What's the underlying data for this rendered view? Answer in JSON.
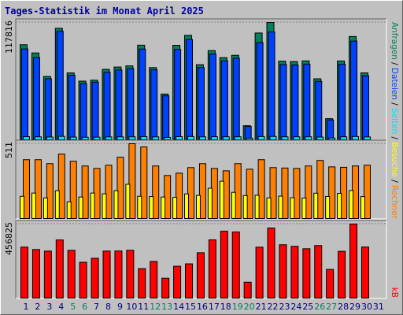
{
  "chart_data": {
    "type": "bar",
    "title": "Tages-Statistik im Monat April 2025",
    "categories": [
      "1",
      "2",
      "3",
      "4",
      "5",
      "6",
      "7",
      "8",
      "9",
      "10",
      "11",
      "12",
      "13",
      "14",
      "15",
      "16",
      "17",
      "18",
      "19",
      "20",
      "21",
      "22",
      "23",
      "24",
      "25",
      "26",
      "27",
      "28",
      "29",
      "30",
      "31"
    ],
    "category_colors": [
      "#000080",
      "#000080",
      "#000080",
      "#000080",
      "#008060",
      "#008060",
      "#000080",
      "#000080",
      "#000080",
      "#000080",
      "#000080",
      "#008060",
      "#008060",
      "#000080",
      "#000080",
      "#000080",
      "#000080",
      "#000080",
      "#008060",
      "#008060",
      "#000080",
      "#000080",
      "#000080",
      "#000080",
      "#000080",
      "#008060",
      "#008060",
      "#000080",
      "#000080",
      "#000080",
      "#000080"
    ],
    "legend_separator": "/",
    "panels": [
      {
        "ylim": [
          0,
          117816
        ],
        "yticks": [
          117816
        ],
        "series": [
          {
            "name": "Anfragen",
            "color": "#00805c",
            "values": [
              95431,
              87184,
              63621,
              111925,
              67155,
              58908,
              59820,
              70690,
              73046,
              74224,
              95012,
              72510,
              45948,
              94870,
              104856,
              75402,
              89540,
              82471,
              84828,
              14138,
              107213,
              117816,
              78937,
              78500,
              79210,
              61264,
              21207,
              79100,
              103678,
              67155,
              null
            ]
          },
          {
            "name": "Dateien",
            "color": "#0040ff",
            "values": [
              91200,
              82600,
              61300,
              108900,
              64800,
              56400,
              57900,
              67800,
              70100,
              71500,
              91100,
              70200,
              44100,
              90800,
              100700,
              72600,
              86100,
              79300,
              81900,
              13400,
              97600,
              108300,
              75600,
              75100,
              76000,
              58700,
              19900,
              75900,
              99100,
              64300,
              null
            ]
          },
          {
            "name": "Seiten",
            "color": "#00e0ff",
            "values": [
              3120,
              2980,
              2750,
              3410,
              2690,
              2540,
              2610,
              2870,
              2930,
              2960,
              3180,
              2900,
              2410,
              3150,
              3290,
              2950,
              3080,
              2990,
              3010,
              1620,
              3240,
              3380,
              2980,
              2970,
              3010,
              2720,
              1810,
              2990,
              3260,
              2850,
              null
            ]
          }
        ]
      },
      {
        "ylim": [
          0,
          511
        ],
        "yticks": [
          511
        ],
        "series": [
          {
            "name": "Besuche",
            "color": "#ffff00",
            "values": [
              152,
              174,
              141,
              190,
              114,
              147,
              174,
              169,
              190,
              234,
              152,
              150,
              147,
              145,
              168,
              158,
              207,
              255,
              179,
              157,
              159,
              141,
              153,
              142,
              140,
              173,
              151,
              172,
              191,
              150,
              null
            ]
          },
          {
            "name": "Rechner",
            "color": "#ff8000",
            "values": [
              402,
              402,
              375,
              440,
              391,
              359,
              342,
              364,
              419,
              511,
              489,
              359,
              294,
              310,
              348,
              375,
              342,
              326,
              375,
              337,
              402,
              348,
              345,
              342,
              359,
              397,
              353,
              350,
              359,
              364,
              null
            ]
          }
        ]
      },
      {
        "ylim": [
          0,
          456825
        ],
        "yticks": [
          456825
        ],
        "series": [
          {
            "name": "kB",
            "color": "#ff0000",
            "values": [
              314374,
              299639,
              289814,
              358585,
              294726,
              221044,
              245605,
              290120,
              290500,
              295010,
              181749,
              225957,
              122803,
              196484,
              211221,
              279989,
              359100,
              412616,
              407702,
              98242,
              313900,
              432264,
              329110,
              319286,
              304550,
              324198,
              176835,
              288700,
              456825,
              315020,
              null
            ]
          }
        ]
      }
    ]
  }
}
